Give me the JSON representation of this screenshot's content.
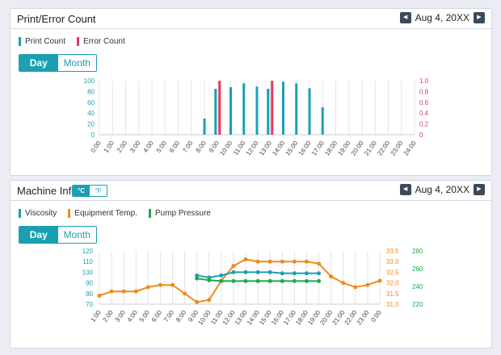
{
  "colors": {
    "teal": "#1ba0b2",
    "red": "#e8365d",
    "orange": "#f08a1c",
    "green": "#21a84c"
  },
  "print_panel": {
    "title": "Print/Error Count",
    "date": "Aug 4, 20XX",
    "prev_icon": "triangle-left",
    "next_icon": "triangle-right",
    "legend": [
      "Print Count",
      "Error Count"
    ],
    "toggle": {
      "day": "Day",
      "month": "Month",
      "active": "Day"
    }
  },
  "machine_panel": {
    "title": "Machine Info",
    "unit_toggle": {
      "celsius": "°C",
      "fahrenheit": "°F",
      "active": "°C"
    },
    "date": "Aug 4, 20XX",
    "prev_icon": "triangle-left",
    "next_icon": "triangle-right",
    "legend": [
      "Viscosity",
      "Equipment Temp.",
      "Pump Pressure"
    ],
    "toggle": {
      "day": "Day",
      "month": "Month",
      "active": "Day"
    }
  },
  "chart_data": [
    {
      "type": "bar",
      "categories": [
        "0:00",
        "1:00",
        "2:00",
        "3:00",
        "4:00",
        "5:00",
        "6:00",
        "7:00",
        "8:00",
        "9:00",
        "10:00",
        "11:00",
        "12:00",
        "13:00",
        "14:00",
        "15:00",
        "16:00",
        "17:00",
        "18:00",
        "19:00",
        "20:00",
        "21:00",
        "22:00",
        "23:00",
        "24:00"
      ],
      "y_left_ticks": [
        "100",
        "80",
        "60",
        "40",
        "20",
        "0"
      ],
      "y_right_ticks": [
        "1.0",
        "0.8",
        "0.6",
        "0.4",
        "0.2",
        "0"
      ],
      "ylim_left": [
        0,
        100
      ],
      "ylim_right": [
        0,
        1.0
      ],
      "series": [
        {
          "name": "Print Count",
          "axis": "left",
          "values": [
            0,
            0,
            0,
            0,
            0,
            0,
            0,
            0,
            30,
            85,
            88,
            95,
            89,
            85,
            98,
            95,
            86,
            51,
            0,
            0,
            0,
            0,
            0,
            0,
            0
          ]
        },
        {
          "name": "Error Count",
          "axis": "right",
          "values": [
            0,
            0,
            0,
            0,
            0,
            0,
            0,
            0,
            0,
            1.0,
            0,
            0,
            0,
            1.0,
            0,
            0,
            0,
            0,
            0,
            0,
            0,
            0,
            0,
            0,
            0
          ]
        }
      ],
      "grid": true
    },
    {
      "type": "line",
      "categories": [
        "1:00",
        "2:00",
        "3:00",
        "4:00",
        "5:00",
        "6:00",
        "7:00",
        "8:00",
        "9:00",
        "10:00",
        "11:00",
        "12:00",
        "13:00",
        "14:00",
        "15:00",
        "16:00",
        "17:00",
        "18:00",
        "19:00",
        "20:00",
        "21:00",
        "22:00",
        "23:00",
        "0:00"
      ],
      "y_left_ticks": [
        "120",
        "110",
        "100",
        "90",
        "80",
        "70"
      ],
      "y_mid_ticks": [
        "33.5",
        "33.0",
        "32.5",
        "32.0",
        "31.5",
        "31.0"
      ],
      "y_right_ticks": [
        "280",
        "260",
        "240",
        "220"
      ],
      "ylim_left": [
        70,
        120
      ],
      "ylim_mid": [
        31.0,
        33.5
      ],
      "ylim_right": [
        220,
        280
      ],
      "series": [
        {
          "name": "Viscosity",
          "axis": "left",
          "values": [
            null,
            null,
            null,
            null,
            null,
            null,
            null,
            null,
            97,
            95,
            97,
            100,
            100,
            100,
            100,
            99,
            99,
            99,
            99,
            null,
            null,
            null,
            null,
            null
          ]
        },
        {
          "name": "Equipment Temp.",
          "axis": "mid",
          "values": [
            31.4,
            31.6,
            31.6,
            31.6,
            31.8,
            31.9,
            31.9,
            31.5,
            31.1,
            31.2,
            32.1,
            32.8,
            33.1,
            33.0,
            33.0,
            33.0,
            33.0,
            33.0,
            32.9,
            32.3,
            32.0,
            31.8,
            31.9,
            32.1
          ]
        },
        {
          "name": "Pump Pressure",
          "axis": "right",
          "values": [
            null,
            null,
            null,
            null,
            null,
            null,
            null,
            null,
            249,
            247,
            246,
            246,
            246,
            246,
            246,
            246,
            246,
            246,
            246,
            null,
            null,
            null,
            null,
            null
          ]
        }
      ],
      "grid": true
    }
  ]
}
